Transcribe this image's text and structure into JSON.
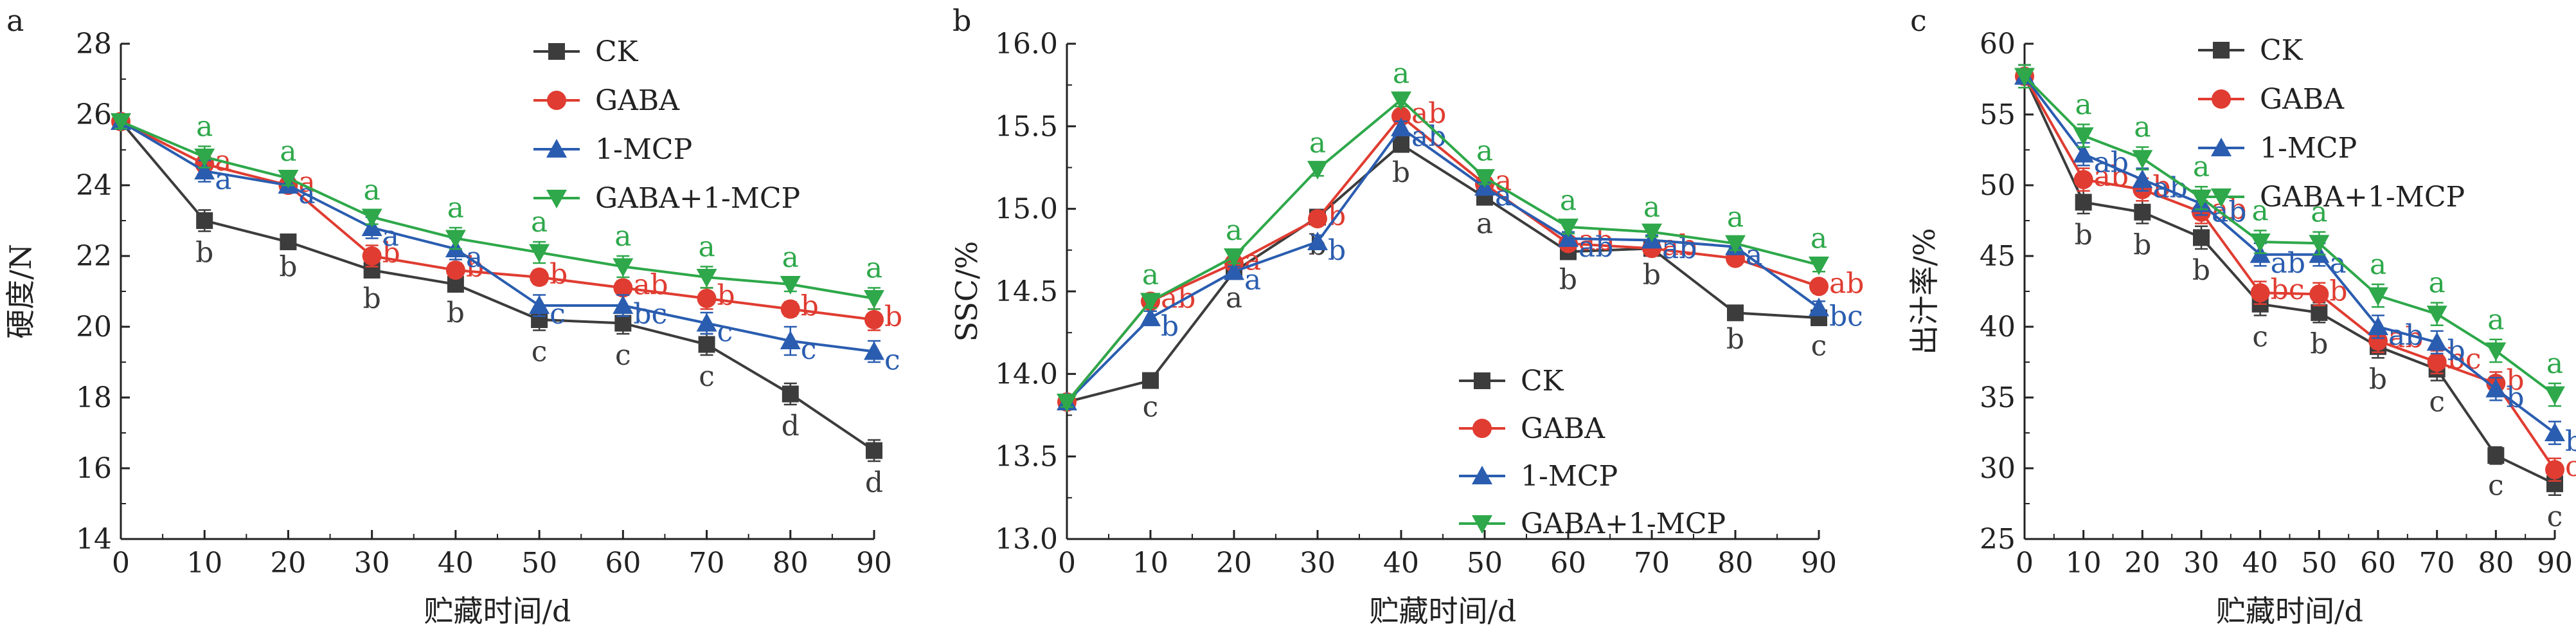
{
  "chart_data": [
    {
      "panel_label": "a",
      "type": "line",
      "xlabel": "贮藏时间/d",
      "ylabel": "硬度/N",
      "x": [
        0,
        10,
        20,
        30,
        40,
        50,
        60,
        70,
        80,
        90
      ],
      "xticks": [
        0,
        10,
        20,
        30,
        40,
        50,
        60,
        70,
        80,
        90
      ],
      "yticks": [
        14,
        16,
        18,
        20,
        22,
        24,
        26,
        28
      ],
      "xlim": [
        0,
        90
      ],
      "ylim": [
        14,
        28
      ],
      "legend_position": "top-right",
      "series": [
        {
          "name": "CK",
          "color": "#3c3c3c",
          "marker": "square",
          "values": [
            25.8,
            23.0,
            22.4,
            21.6,
            21.2,
            20.2,
            20.1,
            19.5,
            18.1,
            16.5
          ],
          "errors": [
            0.2,
            0.3,
            0.1,
            0.2,
            0.2,
            0.3,
            0.3,
            0.3,
            0.3,
            0.3
          ],
          "letters": [
            "",
            "b",
            "b",
            "b",
            "b",
            "c",
            "c",
            "c",
            "d",
            "d"
          ]
        },
        {
          "name": "GABA",
          "color": "#e03c31",
          "marker": "circle",
          "values": [
            25.8,
            24.6,
            24.0,
            22.0,
            21.6,
            21.4,
            21.1,
            20.8,
            20.5,
            20.2
          ],
          "errors": [
            0.2,
            0.2,
            0.2,
            0.3,
            0.2,
            0.2,
            0.2,
            0.3,
            0.2,
            0.3
          ],
          "letters": [
            "",
            "a",
            "a",
            "b",
            "b",
            "b",
            "ab",
            "b",
            "b",
            "b"
          ]
        },
        {
          "name": "1-MCP",
          "color": "#2a5db0",
          "marker": "triangle",
          "values": [
            25.8,
            24.4,
            24.0,
            22.8,
            22.2,
            20.6,
            20.6,
            20.1,
            19.6,
            19.3
          ],
          "errors": [
            0.2,
            0.3,
            0.2,
            0.3,
            0.3,
            0.3,
            0.3,
            0.3,
            0.4,
            0.3
          ],
          "letters": [
            "",
            "a",
            "a",
            "a",
            "a",
            "c",
            "bc",
            "c",
            "c",
            "c"
          ]
        },
        {
          "name": "GABA+1-MCP",
          "color": "#2ea84a",
          "marker": "triangle-down",
          "values": [
            25.8,
            24.8,
            24.2,
            23.1,
            22.5,
            22.1,
            21.7,
            21.4,
            21.2,
            20.8
          ],
          "errors": [
            0.2,
            0.3,
            0.2,
            0.2,
            0.3,
            0.3,
            0.3,
            0.3,
            0.2,
            0.3
          ],
          "letters": [
            "",
            "a",
            "a",
            "a",
            "a",
            "a",
            "a",
            "a",
            "a",
            "a"
          ]
        }
      ]
    },
    {
      "panel_label": "b",
      "type": "line",
      "xlabel": "贮藏时间/d",
      "ylabel": "SSC/%",
      "x": [
        0,
        10,
        20,
        30,
        40,
        50,
        60,
        70,
        80,
        90
      ],
      "xticks": [
        0,
        10,
        20,
        30,
        40,
        50,
        60,
        70,
        80,
        90
      ],
      "yticks": [
        13.0,
        13.5,
        14.0,
        14.5,
        15.0,
        15.5,
        16.0
      ],
      "ytick_labels": [
        "13.0",
        "13.5",
        "14.0",
        "14.5",
        "15.0",
        "15.5",
        "16.0"
      ],
      "xlim": [
        0,
        90
      ],
      "ylim": [
        13.0,
        16.0
      ],
      "legend_position": "lower-right",
      "series": [
        {
          "name": "CK",
          "color": "#3c3c3c",
          "marker": "square",
          "values": [
            13.83,
            13.96,
            14.62,
            14.95,
            15.39,
            15.07,
            14.74,
            14.76,
            14.37,
            14.34
          ],
          "errors": [
            0.03,
            0.03,
            0.03,
            0.04,
            0.04,
            0.03,
            0.04,
            0.03,
            0.03,
            0.04
          ],
          "letters": [
            "",
            "c",
            "a",
            "b",
            "b",
            "a",
            "b",
            "b",
            "b",
            "c"
          ]
        },
        {
          "name": "GABA",
          "color": "#e03c31",
          "marker": "circle",
          "values": [
            13.83,
            14.44,
            14.67,
            14.94,
            15.56,
            15.15,
            14.79,
            14.76,
            14.7,
            14.53
          ],
          "errors": [
            0.03,
            0.04,
            0.03,
            0.04,
            0.04,
            0.03,
            0.04,
            0.03,
            0.04,
            0.04
          ],
          "letters": [
            "",
            "ab",
            "a",
            "b",
            "ab",
            "a",
            "ab",
            "ab",
            "a",
            "ab"
          ]
        },
        {
          "name": "1-MCP",
          "color": "#2a5db0",
          "marker": "triangle",
          "values": [
            13.83,
            14.34,
            14.62,
            14.8,
            15.49,
            15.13,
            14.82,
            14.81,
            14.77,
            14.4
          ],
          "errors": [
            0.03,
            0.04,
            0.03,
            0.04,
            0.04,
            0.03,
            0.04,
            0.03,
            0.04,
            0.04
          ],
          "letters": [
            "",
            "b",
            "a",
            "b",
            "ab",
            "a",
            "ab",
            "ab",
            "a",
            "bc"
          ]
        },
        {
          "name": "GABA+1-MCP",
          "color": "#2ea84a",
          "marker": "triangle-down",
          "values": [
            13.83,
            14.44,
            14.71,
            15.24,
            15.66,
            15.19,
            14.89,
            14.86,
            14.79,
            14.66
          ],
          "errors": [
            0.03,
            0.04,
            0.04,
            0.04,
            0.04,
            0.04,
            0.04,
            0.03,
            0.04,
            0.04
          ],
          "letters": [
            "",
            "a",
            "a",
            "a",
            "a",
            "a",
            "a",
            "a",
            "a",
            "a"
          ]
        }
      ]
    },
    {
      "panel_label": "c",
      "type": "line",
      "xlabel": "贮藏时间/d",
      "ylabel": "出汁率/%",
      "x": [
        0,
        10,
        20,
        30,
        40,
        50,
        60,
        70,
        80,
        90
      ],
      "xticks": [
        0,
        10,
        20,
        30,
        40,
        50,
        60,
        70,
        80,
        90
      ],
      "yticks": [
        25,
        30,
        35,
        40,
        45,
        50,
        55,
        60
      ],
      "xlim": [
        0,
        90
      ],
      "ylim": [
        25,
        60
      ],
      "legend_position": "top-right",
      "series": [
        {
          "name": "CK",
          "color": "#3c3c3c",
          "marker": "square",
          "values": [
            57.7,
            48.8,
            48.1,
            46.3,
            41.6,
            41.0,
            38.6,
            37.0,
            30.9,
            28.9
          ],
          "errors": [
            0.8,
            0.8,
            0.8,
            0.8,
            0.8,
            0.7,
            0.8,
            0.8,
            0.6,
            0.8
          ],
          "letters": [
            "",
            "b",
            "b",
            "b",
            "c",
            "b",
            "b",
            "c",
            "c",
            "c"
          ]
        },
        {
          "name": "GABA",
          "color": "#e03c31",
          "marker": "circle",
          "values": [
            57.7,
            50.4,
            49.7,
            48.1,
            42.4,
            42.3,
            39.0,
            37.5,
            36.0,
            29.9
          ],
          "errors": [
            0.8,
            0.8,
            0.8,
            0.8,
            0.8,
            0.8,
            0.8,
            0.8,
            0.8,
            0.8
          ],
          "letters": [
            "",
            "ab",
            "b",
            "ab",
            "bc",
            "b",
            "ab",
            "bc",
            "b",
            "c"
          ]
        },
        {
          "name": "1-MCP",
          "color": "#2a5db0",
          "marker": "triangle",
          "values": [
            57.7,
            52.2,
            50.4,
            48.7,
            45.1,
            45.1,
            40.0,
            38.9,
            35.6,
            32.5
          ],
          "errors": [
            0.8,
            0.8,
            0.8,
            0.8,
            0.8,
            0.8,
            0.8,
            0.8,
            0.8,
            0.8
          ],
          "letters": [
            "",
            "ab",
            "ab",
            "ab",
            "ab",
            "a",
            "ab",
            "b",
            "b",
            "b"
          ]
        },
        {
          "name": "GABA+1-MCP",
          "color": "#2ea84a",
          "marker": "triangle-down",
          "values": [
            57.7,
            53.5,
            51.9,
            49.1,
            46.0,
            45.9,
            42.2,
            40.9,
            38.3,
            35.2
          ],
          "errors": [
            0.8,
            0.8,
            0.8,
            0.8,
            0.8,
            0.8,
            0.8,
            0.8,
            0.8,
            0.8
          ],
          "letters": [
            "",
            "a",
            "a",
            "a",
            "a",
            "a",
            "a",
            "a",
            "a",
            "a"
          ]
        }
      ]
    }
  ]
}
